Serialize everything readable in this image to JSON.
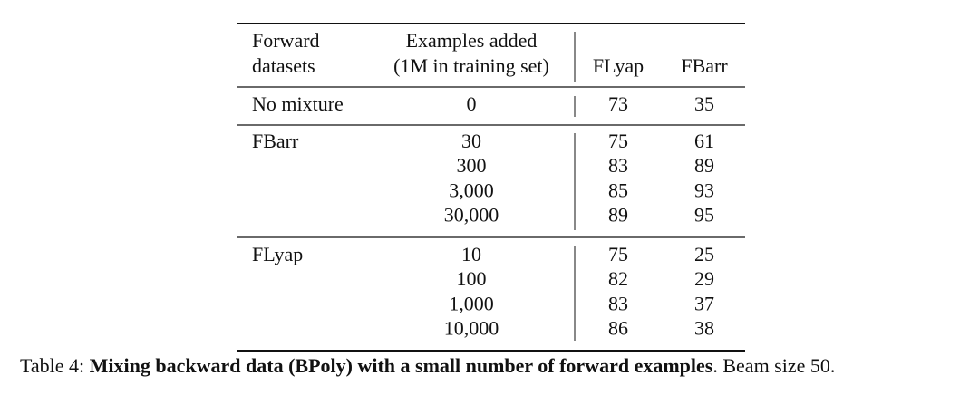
{
  "table": {
    "columns": [
      [
        "Forward",
        "datasets"
      ],
      [
        "Examples added",
        "(1M in training set)"
      ],
      [
        "FLyap"
      ],
      [
        "FBarr"
      ]
    ],
    "groups": [
      {
        "dataset": "No mixture",
        "rows": [
          [
            0,
            73,
            35
          ]
        ]
      },
      {
        "dataset": "FBarr",
        "rows": [
          [
            30,
            75,
            61
          ],
          [
            300,
            83,
            89
          ],
          [
            "3,000",
            85,
            93
          ],
          [
            "30,000",
            89,
            95
          ]
        ]
      },
      {
        "dataset": "FLyap",
        "rows": [
          [
            10,
            75,
            25
          ],
          [
            100,
            82,
            29
          ],
          [
            "1,000",
            83,
            37
          ],
          [
            "10,000",
            86,
            38
          ]
        ]
      }
    ]
  },
  "caption": {
    "label": "Table 4:",
    "bold": "Mixing backward data (BPoly) with a small number of forward examples",
    "rest": ". Beam size 50."
  }
}
